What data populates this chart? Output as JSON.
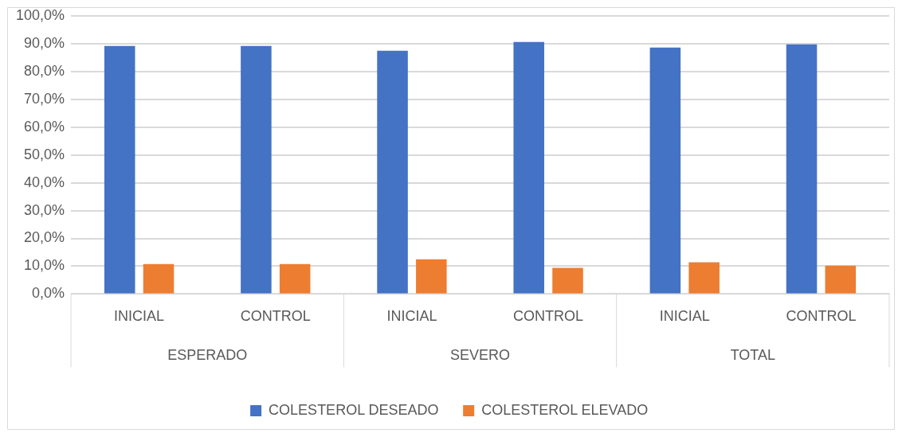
{
  "chart_data": {
    "type": "bar",
    "categories": [
      "INICIAL",
      "CONTROL",
      "INICIAL",
      "CONTROL",
      "INICIAL",
      "CONTROL"
    ],
    "annotations": [
      "ESPERADO",
      "SEVERO",
      "TOTAL"
    ],
    "series": [
      {
        "name": "COLESTEROL DESEADO",
        "color": "#4472c4",
        "values": [
          89.2,
          89.2,
          87.5,
          90.6,
          88.6,
          89.8
        ]
      },
      {
        "name": "COLESTEROL ELEVADO",
        "color": "#ed7d31",
        "values": [
          10.8,
          10.8,
          12.5,
          9.4,
          11.4,
          10.2
        ]
      }
    ],
    "ylim": [
      0,
      100
    ],
    "yticks": [
      {
        "value": 0,
        "label": "0,0%"
      },
      {
        "value": 10,
        "label": "10,0%"
      },
      {
        "value": 20,
        "label": "20,0%"
      },
      {
        "value": 30,
        "label": "30,0%"
      },
      {
        "value": 40,
        "label": "40,0%"
      },
      {
        "value": 50,
        "label": "50,0%"
      },
      {
        "value": 60,
        "label": "60,0%"
      },
      {
        "value": 70,
        "label": "70,0%"
      },
      {
        "value": 80,
        "label": "80,0%"
      },
      {
        "value": 90,
        "label": "90,0%"
      },
      {
        "value": 100,
        "label": "100,0%"
      }
    ],
    "grid": "y",
    "legend": "bottom"
  }
}
